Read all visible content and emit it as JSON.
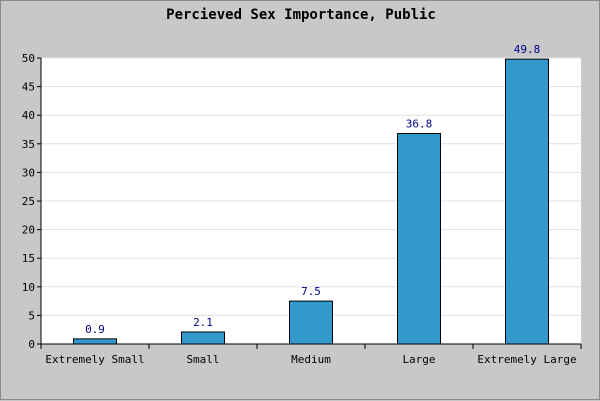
{
  "chart_data": {
    "type": "bar",
    "title": "Percieved Sex Importance, Public",
    "xlabel": "",
    "ylabel": "",
    "categories": [
      "Extremely Small",
      "Small",
      "Medium",
      "Large",
      "Extremely Large"
    ],
    "values": [
      0.9,
      2.1,
      7.5,
      36.8,
      49.8
    ],
    "value_labels": [
      "0.9",
      "2.1",
      "7.5",
      "36.8",
      "49.8"
    ],
    "ylim": [
      0,
      50
    ],
    "yticks": [
      0,
      5,
      10,
      15,
      20,
      25,
      30,
      35,
      40,
      45,
      50
    ],
    "grid": true,
    "legend": "none",
    "colors": {
      "bar": "#3399cc",
      "bar_border": "#000000",
      "plot_background": "#ffffff",
      "frame_background": "#c8c8c8",
      "gridline": "#e0e0e0",
      "value_label": "#00008b"
    }
  }
}
